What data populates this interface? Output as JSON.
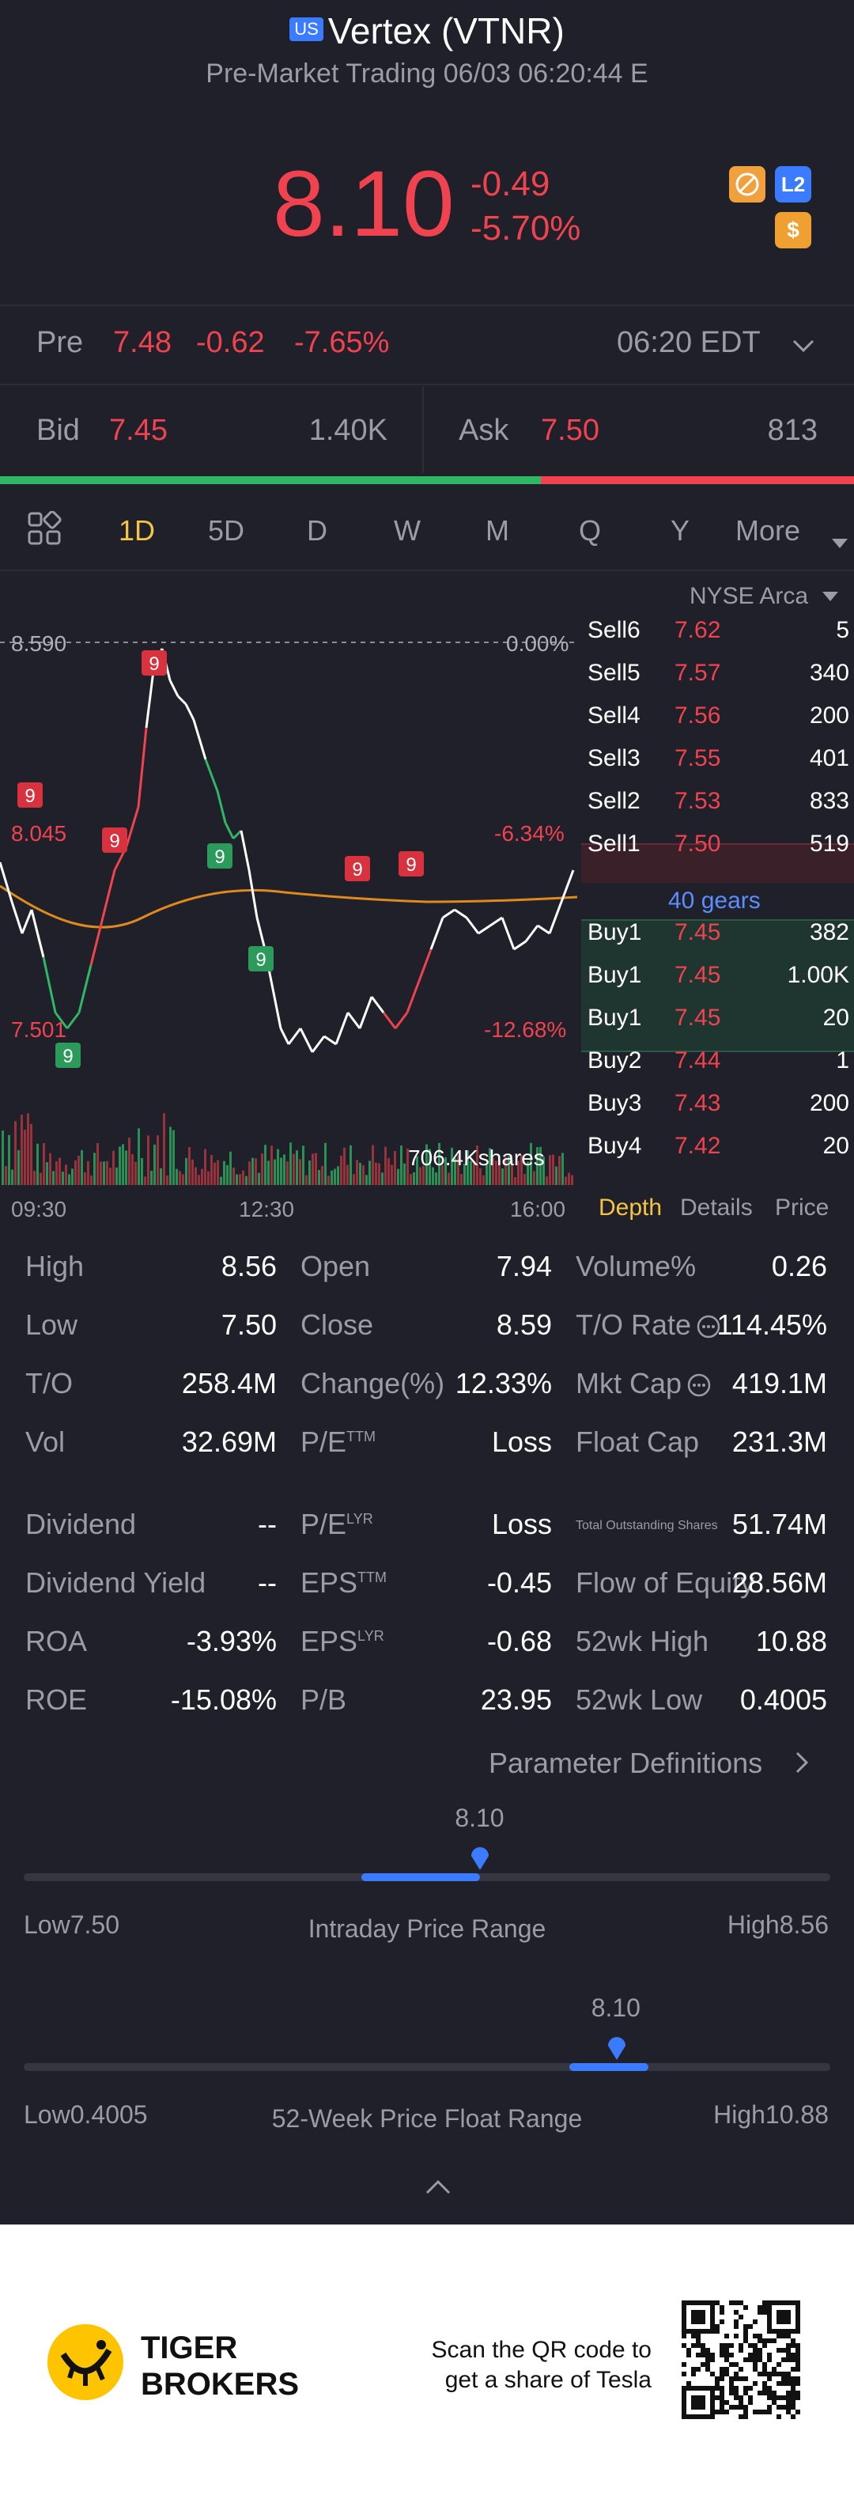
{
  "header": {
    "market_badge": "US",
    "title": "Vertex (VTNR)",
    "subtitle": "Pre-Market Trading 06/03 06:20:44 E",
    "price": "8.10",
    "change": "-0.49",
    "change_pct": "-5.70%",
    "l2_label": "L2",
    "dollar_label": "$"
  },
  "pre": {
    "label": "Pre",
    "price": "7.48",
    "change": "-0.62",
    "change_pct": "-7.65%",
    "time": "06:20 EDT"
  },
  "bidask": {
    "bid_label": "Bid",
    "bid_price": "7.45",
    "bid_size": "1.40K",
    "ask_label": "Ask",
    "ask_price": "7.50",
    "ask_size": "813",
    "bid_fraction": 0.633
  },
  "tabs": [
    "1D",
    "5D",
    "D",
    "W",
    "M",
    "Q",
    "Y",
    "More"
  ],
  "active_tab": "1D",
  "exchange": "NYSE Arca",
  "chart": {
    "high_label": "8.590",
    "high_pct": "0.00%",
    "mid_label": "8.045",
    "mid_pct": "-6.34%",
    "low_label": "7.501",
    "low_pct": "-12.68%",
    "volume_label": "706.4Kshares",
    "times": [
      "09:30",
      "12:30",
      "16:00"
    ],
    "markers": [
      "9",
      "9",
      "9",
      "9",
      "9",
      "9",
      "9",
      "9"
    ]
  },
  "orderbook": {
    "rows": [
      {
        "side": "Sell6",
        "price": "7.62",
        "size": "5"
      },
      {
        "side": "Sell5",
        "price": "7.57",
        "size": "340"
      },
      {
        "side": "Sell4",
        "price": "7.56",
        "size": "200"
      },
      {
        "side": "Sell3",
        "price": "7.55",
        "size": "401"
      },
      {
        "side": "Sell2",
        "price": "7.53",
        "size": "833"
      },
      {
        "side": "Sell1",
        "price": "7.50",
        "size": "519"
      },
      {
        "side": "Buy1",
        "price": "7.45",
        "size": "382"
      },
      {
        "side": "Buy1",
        "price": "7.45",
        "size": "1.00K"
      },
      {
        "side": "Buy1",
        "price": "7.45",
        "size": "20"
      },
      {
        "side": "Buy2",
        "price": "7.44",
        "size": "1"
      },
      {
        "side": "Buy3",
        "price": "7.43",
        "size": "200"
      },
      {
        "side": "Buy4",
        "price": "7.42",
        "size": "20"
      }
    ],
    "gears": "40 gears",
    "tabs": [
      "Depth",
      "Details",
      "Price"
    ]
  },
  "stats": {
    "col1": [
      {
        "label": "High",
        "value": "8.56"
      },
      {
        "label": "Low",
        "value": "7.50"
      },
      {
        "label": "T/O",
        "value": "258.4M"
      },
      {
        "label": "Vol",
        "value": "32.69M"
      },
      {
        "label": "Dividend",
        "value": "--"
      },
      {
        "label": "Dividend Yield",
        "value": "--"
      },
      {
        "label": "ROA",
        "value": "-3.93%"
      },
      {
        "label": "ROE",
        "value": "-15.08%"
      }
    ],
    "col2": [
      {
        "label": "Open",
        "value": "7.94"
      },
      {
        "label": "Close",
        "value": "8.59"
      },
      {
        "label": "Change(%)",
        "value": "12.33%"
      },
      {
        "label": "P/E",
        "sup": "TTM",
        "value": "Loss"
      },
      {
        "label": "P/E",
        "sup": "LYR",
        "value": "Loss"
      },
      {
        "label": "EPS",
        "sup": "TTM",
        "value": "-0.45"
      },
      {
        "label": "EPS",
        "sup": "LYR",
        "value": "-0.68"
      },
      {
        "label": "P/B",
        "value": "23.95"
      }
    ],
    "col3": [
      {
        "label": "Volume%",
        "value": "0.26"
      },
      {
        "label": "T/O Rate",
        "value": "114.45%"
      },
      {
        "label": "Mkt Cap",
        "value": "419.1M"
      },
      {
        "label": "Float Cap",
        "value": "231.3M"
      },
      {
        "label": "Total Outstanding Shares",
        "value": "51.74M"
      },
      {
        "label": "Flow of Equity",
        "value": "28.56M"
      },
      {
        "label": "52wk High",
        "value": "10.88"
      },
      {
        "label": "52wk Low",
        "value": "0.4005"
      }
    ],
    "param_link": "Parameter Definitions"
  },
  "ranges": {
    "intraday": {
      "current": "8.10",
      "low_label": "Low",
      "low": "7.50",
      "high_label": "High",
      "high": "8.56",
      "title": "Intraday Price Range",
      "position": 0.566
    },
    "week52": {
      "current": "8.10",
      "low_label": "Low",
      "low": "0.4005",
      "high_label": "High",
      "high": "10.88",
      "title": "52-Week Price Float Range",
      "position": 0.735
    }
  },
  "footer": {
    "brand_line1": "TIGER",
    "brand_line2": "BROKERS",
    "qr_line1": "Scan the QR code to",
    "qr_line2": "get a share of Tesla"
  },
  "colors": {
    "red": "#f0434f",
    "green": "#2fb765",
    "blue": "#3b7bff",
    "orange": "#e08a1e",
    "bg": "#1f2029"
  }
}
